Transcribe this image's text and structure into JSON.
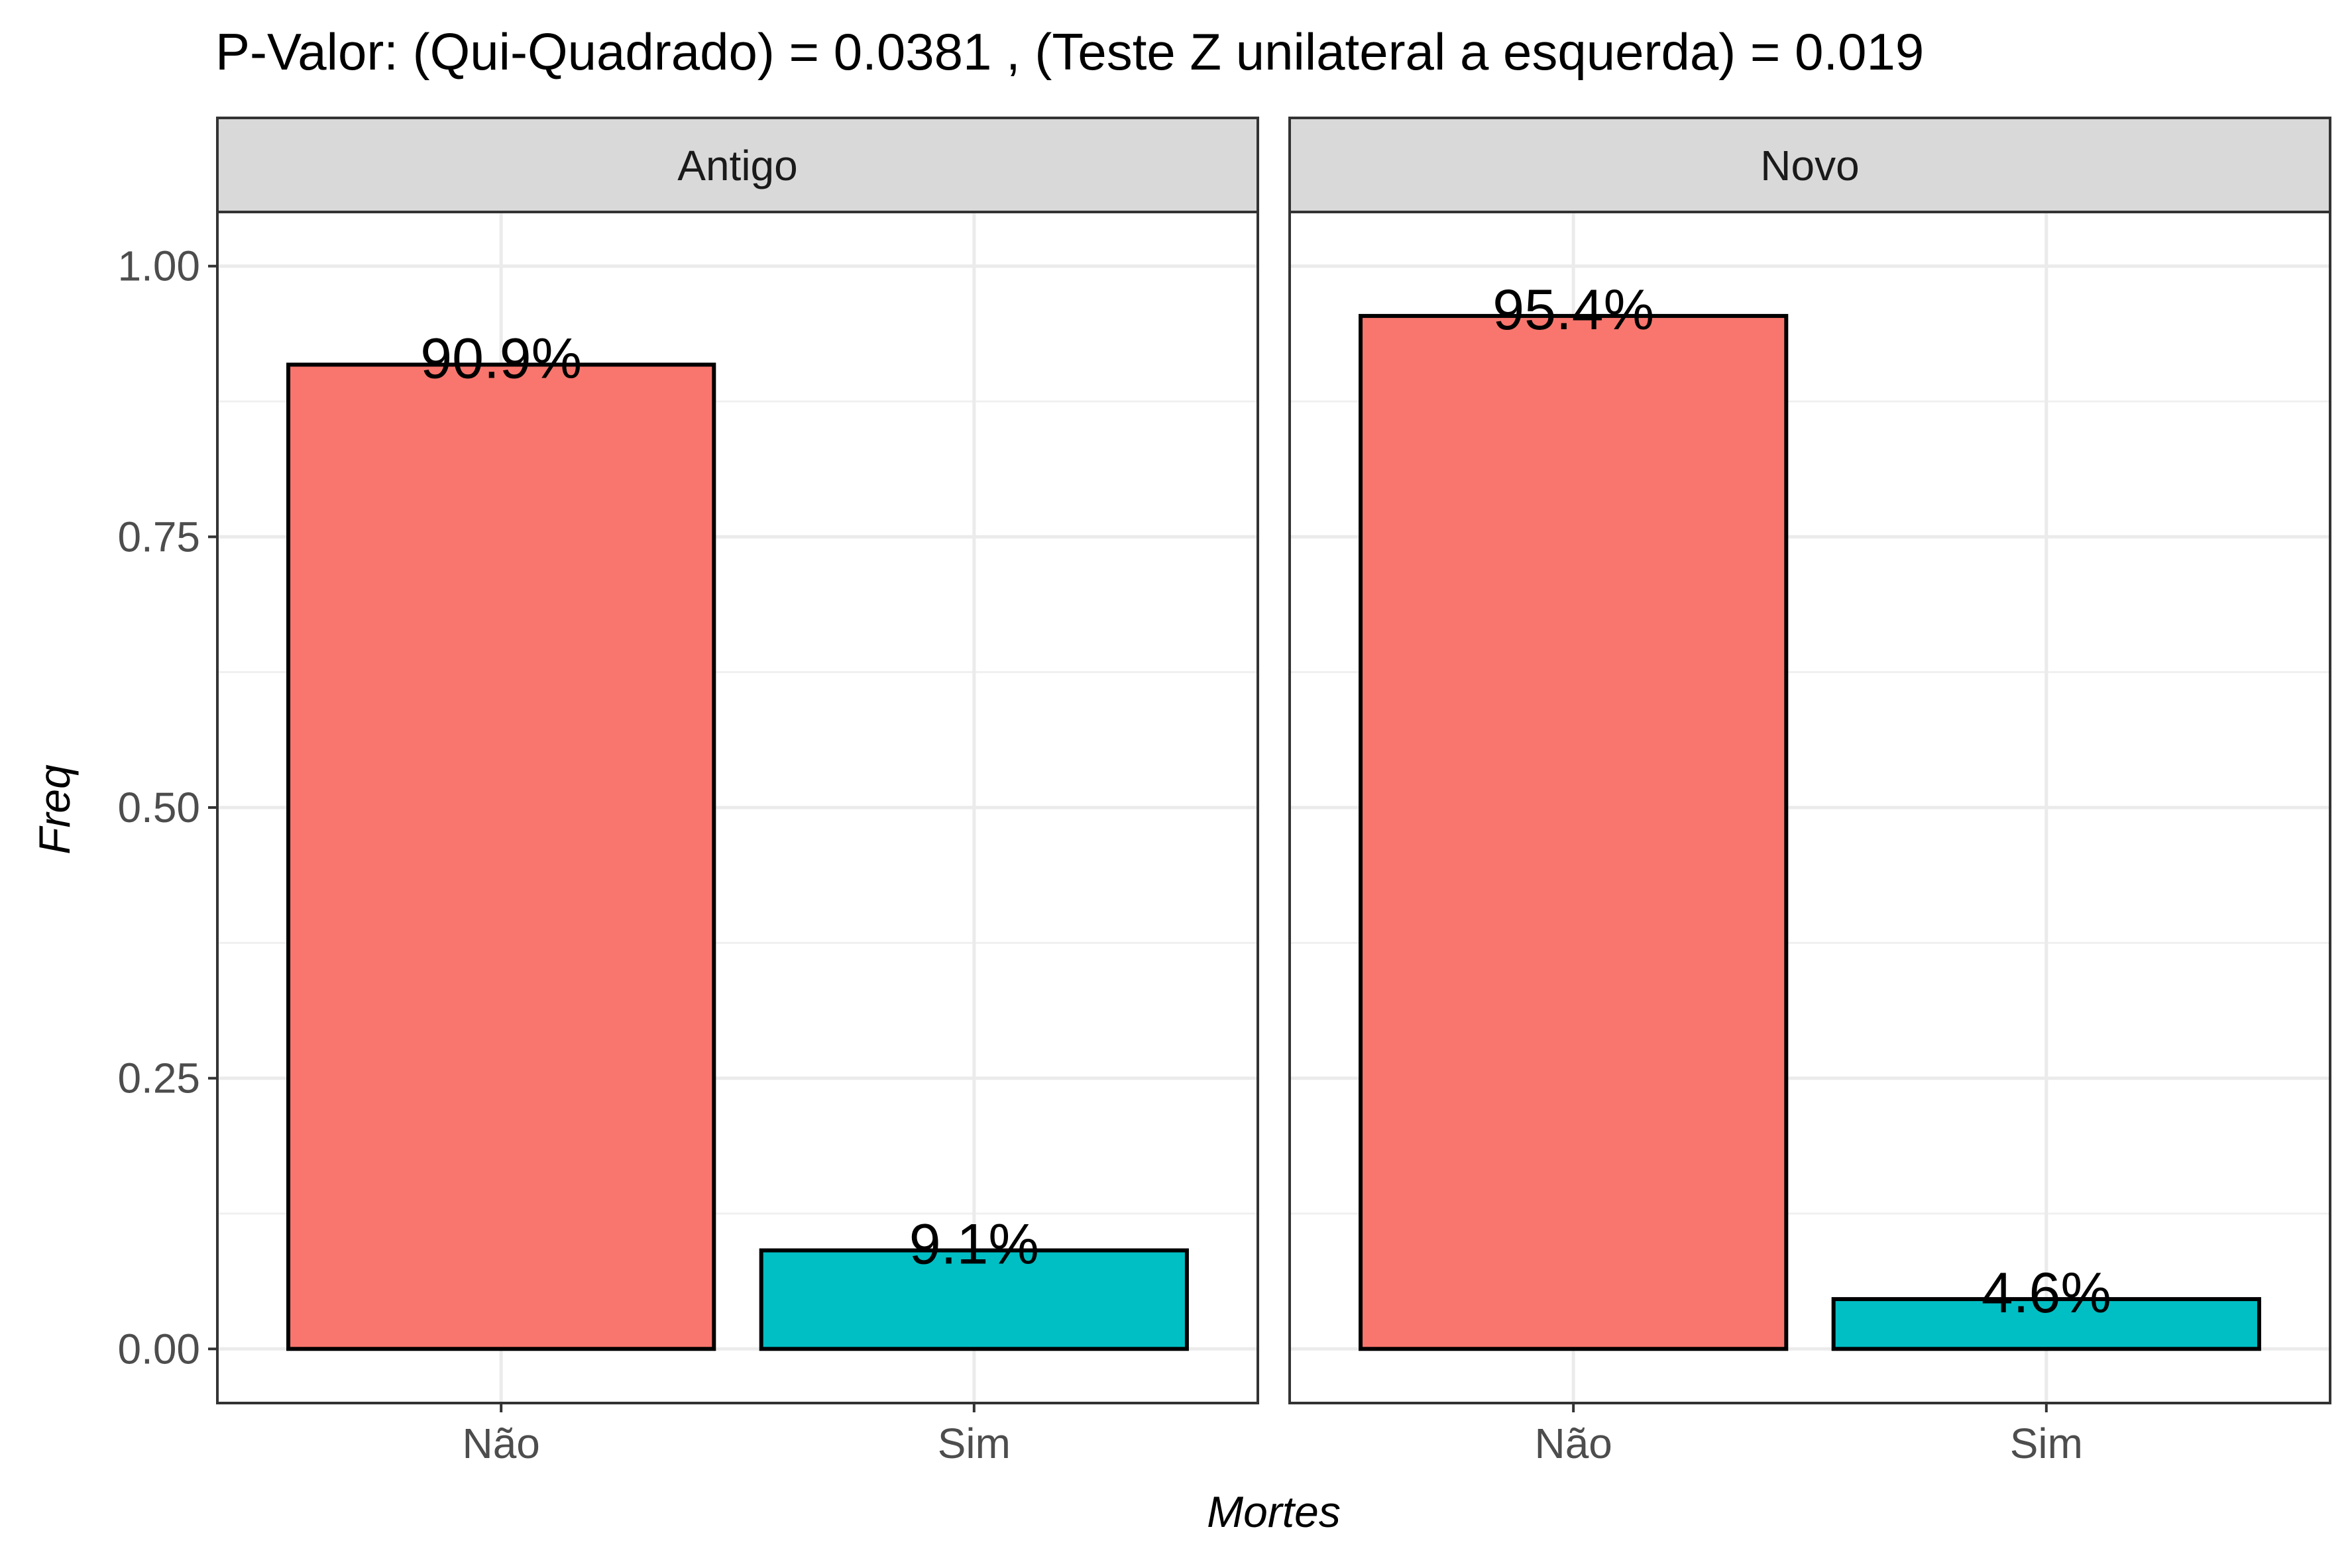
{
  "chart_data": {
    "type": "bar",
    "title": "P-Valor: (Qui-Quadrado) = 0.0381 , (Teste Z unilateral a esquerda) = 0.019",
    "xlabel": "Mortes",
    "ylabel": "Freq",
    "categories": [
      "Não",
      "Sim"
    ],
    "ylim": [
      -0.05,
      1.05
    ],
    "y_ticks": [
      0,
      0.25,
      0.5,
      0.75,
      1
    ],
    "y_tick_labels": [
      "0.00",
      "0.25",
      "0.50",
      "0.75",
      "1.00"
    ],
    "grid": true,
    "legend": "none",
    "colors": {
      "Não": "#F8766D",
      "Sim": "#00BFC4"
    },
    "facets": [
      {
        "name": "Antigo",
        "values": [
          0.909,
          0.091
        ],
        "labels": [
          "90.9%",
          "9.1%"
        ]
      },
      {
        "name": "Novo",
        "values": [
          0.954,
          0.046
        ],
        "labels": [
          "95.4%",
          "4.6%"
        ]
      }
    ]
  }
}
